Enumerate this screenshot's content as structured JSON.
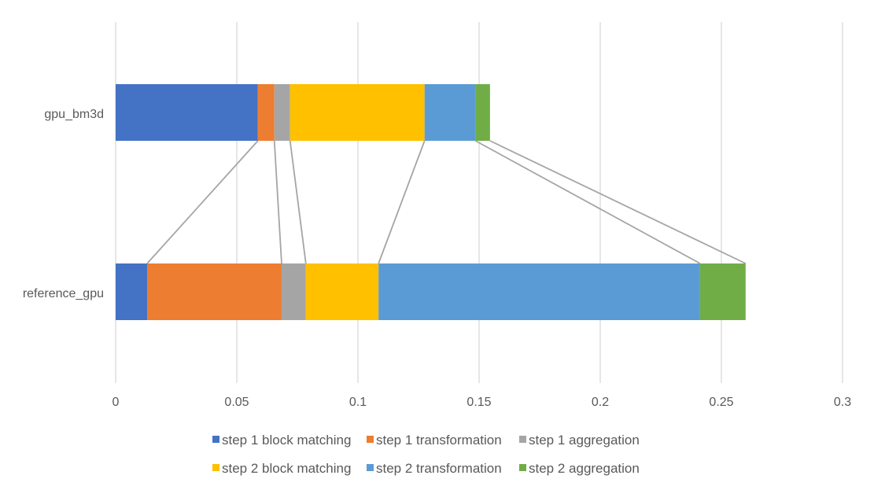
{
  "chart_data": {
    "type": "bar",
    "orientation": "horizontal",
    "stacked": true,
    "title": "",
    "xlabel": "",
    "ylabel": "",
    "categories": [
      "gpu_bm3d",
      "reference_gpu"
    ],
    "xlim": [
      0,
      0.3
    ],
    "x_ticks": [
      0,
      0.05,
      0.1,
      0.15,
      0.2,
      0.25,
      0.3
    ],
    "x_tick_labels": [
      "0",
      "0.05",
      "0.1",
      "0.15",
      "0.2",
      "0.25",
      "0.3"
    ],
    "grid": true,
    "legend_position": "bottom",
    "connector_lines": true,
    "series": [
      {
        "name": "step 1 block matching",
        "color": "#4472C4",
        "values": [
          0.0587,
          0.013
        ]
      },
      {
        "name": "step 1 transformation",
        "color": "#ED7D31",
        "values": [
          0.0068,
          0.0555
        ]
      },
      {
        "name": "step 1 aggregation",
        "color": "#A5A5A5",
        "values": [
          0.0065,
          0.01
        ]
      },
      {
        "name": "step 2 block matching",
        "color": "#FFC000",
        "values": [
          0.0555,
          0.03
        ]
      },
      {
        "name": "step 2 transformation",
        "color": "#5B9BD5",
        "values": [
          0.021,
          0.1327
        ]
      },
      {
        "name": "step 2 aggregation",
        "color": "#70AD47",
        "values": [
          0.006,
          0.0188
        ]
      }
    ]
  }
}
